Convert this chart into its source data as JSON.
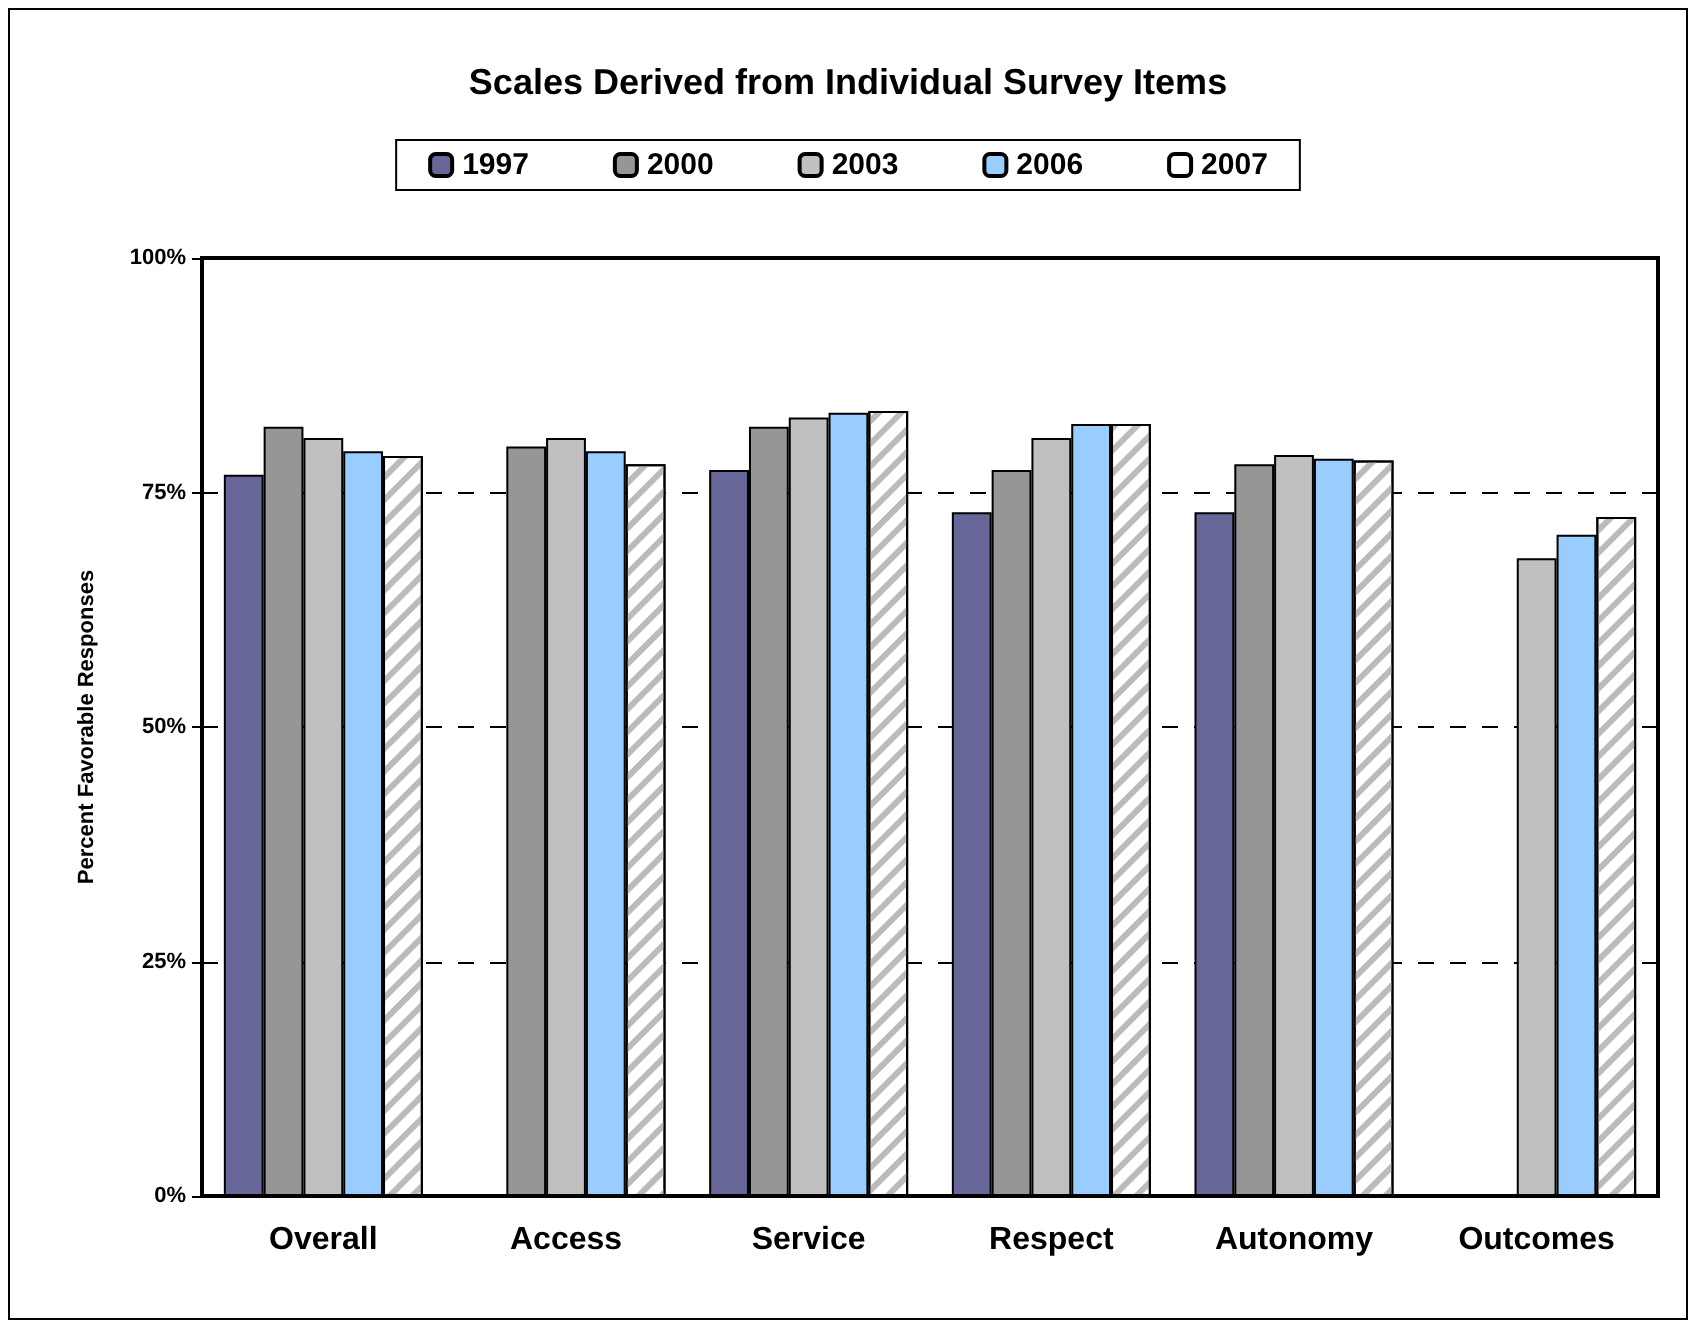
{
  "chart_data": {
    "type": "bar",
    "title": "Scales Derived from Individual Survey Items",
    "ylabel": "Percent Favorable Responses",
    "categories": [
      "Overall",
      "Access",
      "Service",
      "Respect",
      "Autonomy",
      "Outcomes"
    ],
    "series": [
      {
        "name": "1997",
        "color": "#666699",
        "values": [
          76.9,
          null,
          77.4,
          72.9,
          72.9,
          null
        ]
      },
      {
        "name": "2000",
        "color": "#969696",
        "values": [
          82.0,
          79.9,
          82.0,
          77.4,
          78.0,
          null
        ]
      },
      {
        "name": "2003",
        "color": "#c0c0c0",
        "values": [
          80.8,
          80.8,
          83.0,
          80.8,
          79.0,
          68.0
        ]
      },
      {
        "name": "2006",
        "color": "#99ccff",
        "values": [
          79.4,
          79.4,
          83.5,
          82.3,
          78.6,
          70.5
        ]
      },
      {
        "name": "2007",
        "color": "#ffffff",
        "values": [
          78.9,
          78.0,
          83.7,
          82.3,
          78.4,
          72.4
        ]
      }
    ],
    "ylim": [
      0,
      100
    ],
    "yticks": [
      {
        "value": 0,
        "label": "0%"
      },
      {
        "value": 25,
        "label": "25%"
      },
      {
        "value": 50,
        "label": "50%"
      },
      {
        "value": 75,
        "label": "75%"
      },
      {
        "value": 100,
        "label": "100%"
      }
    ],
    "grid": "y",
    "legend": "top"
  }
}
